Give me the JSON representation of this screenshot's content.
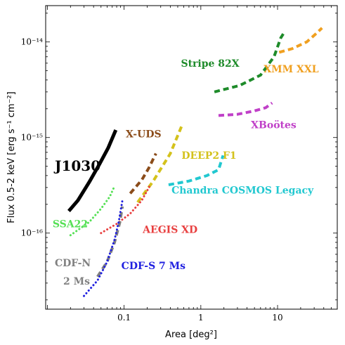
{
  "chart_data": {
    "type": "line",
    "title": "",
    "xlabel": "Area [deg²]",
    "ylabel": "Flux 0.5-2 keV [erg s⁻¹ cm⁻²]",
    "xscale": "log",
    "yscale": "log",
    "xlim": [
      0.0095,
      60
    ],
    "ylim": [
      1.6e-17,
      2.4e-14
    ],
    "x_ticks": [
      {
        "value": 0.1,
        "label": "0.1"
      },
      {
        "value": 1,
        "label": "1"
      },
      {
        "value": 10,
        "label": "10"
      }
    ],
    "y_ticks": [
      {
        "value": 1e-16,
        "label": "10⁻¹⁶"
      },
      {
        "value": 1e-15,
        "label": "10⁻¹⁵"
      },
      {
        "value": 1e-14,
        "label": "10⁻¹⁴"
      }
    ],
    "grid": false,
    "legend": "none; series labelled directly next to curves",
    "series": [
      {
        "name": "J1030",
        "color": "#000000",
        "style": "solid",
        "width": 5,
        "label_size": "big",
        "points": [
          [
            0.019,
            1.7e-16
          ],
          [
            0.025,
            2.2e-16
          ],
          [
            0.035,
            3.4e-16
          ],
          [
            0.048,
            5.3e-16
          ],
          [
            0.062,
            7.8e-16
          ],
          [
            0.078,
            1.2e-15
          ]
        ],
        "label": {
          "text": "J1030",
          "x": 0.0125,
          "y": 4.5e-16,
          "color": "#000000"
        }
      },
      {
        "name": "X-UDS",
        "color": "#8b4c1a",
        "style": "dashed",
        "width": 4,
        "points": [
          [
            0.12,
            2.6e-16
          ],
          [
            0.17,
            3.6e-16
          ],
          [
            0.21,
            4.8e-16
          ],
          [
            0.26,
            6.8e-16
          ]
        ],
        "label": {
          "text": "X-UDS",
          "x": 0.105,
          "y": 1e-15,
          "color": "#8b4c1a"
        }
      },
      {
        "name": "DEEP2 F1",
        "color": "#d4c21c",
        "style": "dashed",
        "width": 4,
        "points": [
          [
            0.15,
            2.1e-16
          ],
          [
            0.24,
            3.5e-16
          ],
          [
            0.4,
            6.8e-16
          ],
          [
            0.58,
            1.4e-15
          ]
        ],
        "label": {
          "text": "DEEP2 F1",
          "x": 0.56,
          "y": 6e-16,
          "color": "#d4c21c"
        }
      },
      {
        "name": "Chandra COSMOS Legacy",
        "color": "#22c8d0",
        "style": "dashed",
        "width": 4,
        "points": [
          [
            0.38,
            3.2e-16
          ],
          [
            0.7,
            3.5e-16
          ],
          [
            1.2,
            4e-16
          ],
          [
            1.7,
            4.6e-16
          ],
          [
            1.95,
            6.5e-16
          ]
        ],
        "label": {
          "text": "Chandra COSMOS Legacy",
          "x": 0.415,
          "y": 2.6e-16,
          "color": "#22c8d0"
        }
      },
      {
        "name": "Stripe 82X",
        "color": "#1e8b2a",
        "style": "dashed",
        "width": 4,
        "points": [
          [
            1.5,
            3e-15
          ],
          [
            3.2,
            3.5e-15
          ],
          [
            6.0,
            4.5e-15
          ],
          [
            9.0,
            7e-15
          ],
          [
            11.0,
            1.1e-14
          ],
          [
            12.5,
            1.3e-14
          ]
        ],
        "label": {
          "text": "Stripe 82X",
          "x": 0.55,
          "y": 5.5e-15,
          "color": "#1e8b2a"
        }
      },
      {
        "name": "XMM XXL",
        "color": "#f0a020",
        "style": "dashed",
        "width": 4,
        "points": [
          [
            10.5,
            7.8e-15
          ],
          [
            15.5,
            8.5e-15
          ],
          [
            24.0,
            1e-14
          ],
          [
            31.0,
            1.2e-14
          ],
          [
            38.0,
            1.4e-14
          ]
        ],
        "label": {
          "text": "XMM XXL",
          "x": 6.6,
          "y": 4.8e-15,
          "color": "#f0a020"
        }
      },
      {
        "name": "XBoötes",
        "color": "#c040c8",
        "style": "dashed",
        "width": 4,
        "points": [
          [
            1.7,
            1.7e-15
          ],
          [
            3.0,
            1.75e-15
          ],
          [
            5.0,
            1.9e-15
          ],
          [
            7.0,
            2.05e-15
          ],
          [
            8.5,
            2.3e-15
          ]
        ],
        "label": {
          "text": "XBoötes",
          "x": 4.5,
          "y": 1.25e-15,
          "color": "#c040c8"
        }
      },
      {
        "name": "SSA22",
        "color": "#55e055",
        "style": "dotted",
        "width": 3,
        "points": [
          [
            0.02,
            9.5e-17
          ],
          [
            0.035,
            1.3e-16
          ],
          [
            0.05,
            1.8e-16
          ],
          [
            0.065,
            2.4e-16
          ],
          [
            0.075,
            3.1e-16
          ]
        ],
        "label": {
          "text": "SSA22",
          "x": 0.0117,
          "y": 1.15e-16,
          "color": "#55e055"
        }
      },
      {
        "name": "AEGIS XD",
        "color": "#e84040",
        "style": "dotted",
        "width": 3,
        "points": [
          [
            0.05,
            1e-16
          ],
          [
            0.08,
            1.25e-16
          ],
          [
            0.12,
            1.6e-16
          ],
          [
            0.17,
            2.2e-16
          ],
          [
            0.22,
            3.2e-16
          ]
        ],
        "label": {
          "text": "AEGIS XD",
          "x": 0.175,
          "y": 1e-16,
          "color": "#e84040"
        }
      },
      {
        "name": "CDF-N 2 Ms",
        "color": "#808080",
        "style": "dashed",
        "width": 4,
        "points": [
          [
            0.045,
            3.5e-17
          ],
          [
            0.06,
            5e-17
          ],
          [
            0.075,
            8e-17
          ],
          [
            0.088,
            1.3e-16
          ],
          [
            0.095,
            1.9e-16
          ]
        ],
        "label": {
          "text": "CDF-N",
          "text2": "2 Ms",
          "x": 0.0125,
          "y": 4.5e-17,
          "y2": 2.9e-17,
          "color": "#808080"
        }
      },
      {
        "name": "CDF-S 7 Ms",
        "color": "#2020e0",
        "style": "dotted",
        "width": 3,
        "points": [
          [
            0.03,
            2.2e-17
          ],
          [
            0.045,
            3.2e-17
          ],
          [
            0.06,
            5e-17
          ],
          [
            0.075,
            8.5e-17
          ],
          [
            0.085,
            1.3e-16
          ],
          [
            0.095,
            2.2e-16
          ]
        ],
        "label": {
          "text": "CDF-S 7 Ms",
          "x": 0.092,
          "y": 4.2e-17,
          "color": "#2020e0"
        }
      }
    ]
  }
}
